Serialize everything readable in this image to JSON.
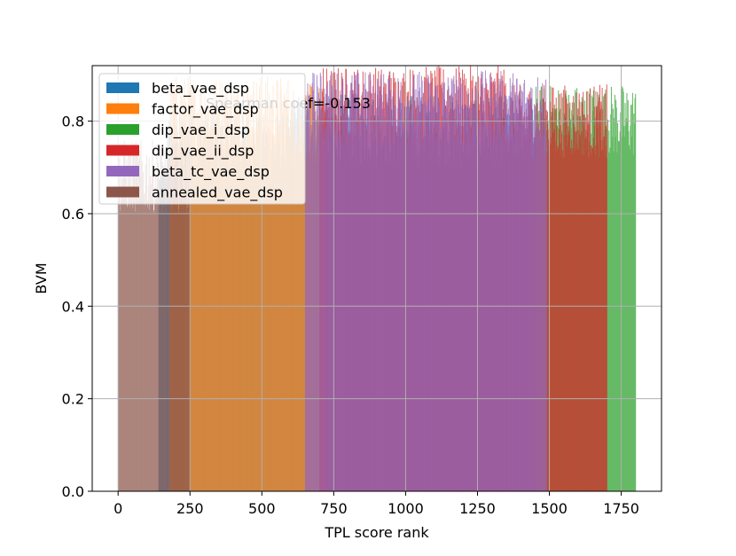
{
  "chart_data": {
    "type": "bar",
    "title": "",
    "annotation": "Spearman coef=-0.153",
    "xlabel": "TPL score rank",
    "ylabel": "BVM",
    "xlim": [
      -90,
      1890
    ],
    "ylim": [
      0,
      0.92
    ],
    "x_ticks": [
      0,
      250,
      500,
      750,
      1000,
      1250,
      1500,
      1750
    ],
    "x_tick_labels": [
      "0",
      "250",
      "500",
      "750",
      "1000",
      "1250",
      "1500",
      "1750"
    ],
    "y_ticks": [
      0.0,
      0.2,
      0.4,
      0.6,
      0.8
    ],
    "y_tick_labels": [
      "0.0",
      "0.2",
      "0.4",
      "0.6",
      "0.8"
    ],
    "grid": true,
    "legend_position": "top-left",
    "series": [
      {
        "name": "beta_vae_dsp",
        "color": "#1f77b4",
        "segments": [
          {
            "x_start": 140,
            "x_end": 170,
            "value": 0.65
          },
          {
            "x_start": 170,
            "x_end": 600,
            "value": 0.74
          },
          {
            "x_start": 600,
            "x_end": 1450,
            "value": 0.78
          }
        ]
      },
      {
        "name": "factor_vae_dsp",
        "color": "#ff7f0e",
        "segments": [
          {
            "x_start": 180,
            "x_end": 600,
            "value": 0.82
          },
          {
            "x_start": 600,
            "x_end": 720,
            "value": 0.8
          }
        ]
      },
      {
        "name": "dip_vae_i_dsp",
        "color": "#2ca02c",
        "segments": [
          {
            "x_start": 1450,
            "x_end": 1800,
            "value": 0.8
          }
        ]
      },
      {
        "name": "dip_vae_ii_dsp",
        "color": "#d62728",
        "segments": [
          {
            "x_start": 700,
            "x_end": 1350,
            "value": 0.84
          },
          {
            "x_start": 1350,
            "x_end": 1700,
            "value": 0.8
          }
        ]
      },
      {
        "name": "beta_tc_vae_dsp",
        "color": "#9467bd",
        "segments": [
          {
            "x_start": 650,
            "x_end": 1490,
            "value": 0.83
          }
        ]
      },
      {
        "name": "annealed_vae_dsp",
        "color": "#8c564b",
        "segments": [
          {
            "x_start": 0,
            "x_end": 250,
            "value": 0.68
          }
        ]
      }
    ]
  }
}
